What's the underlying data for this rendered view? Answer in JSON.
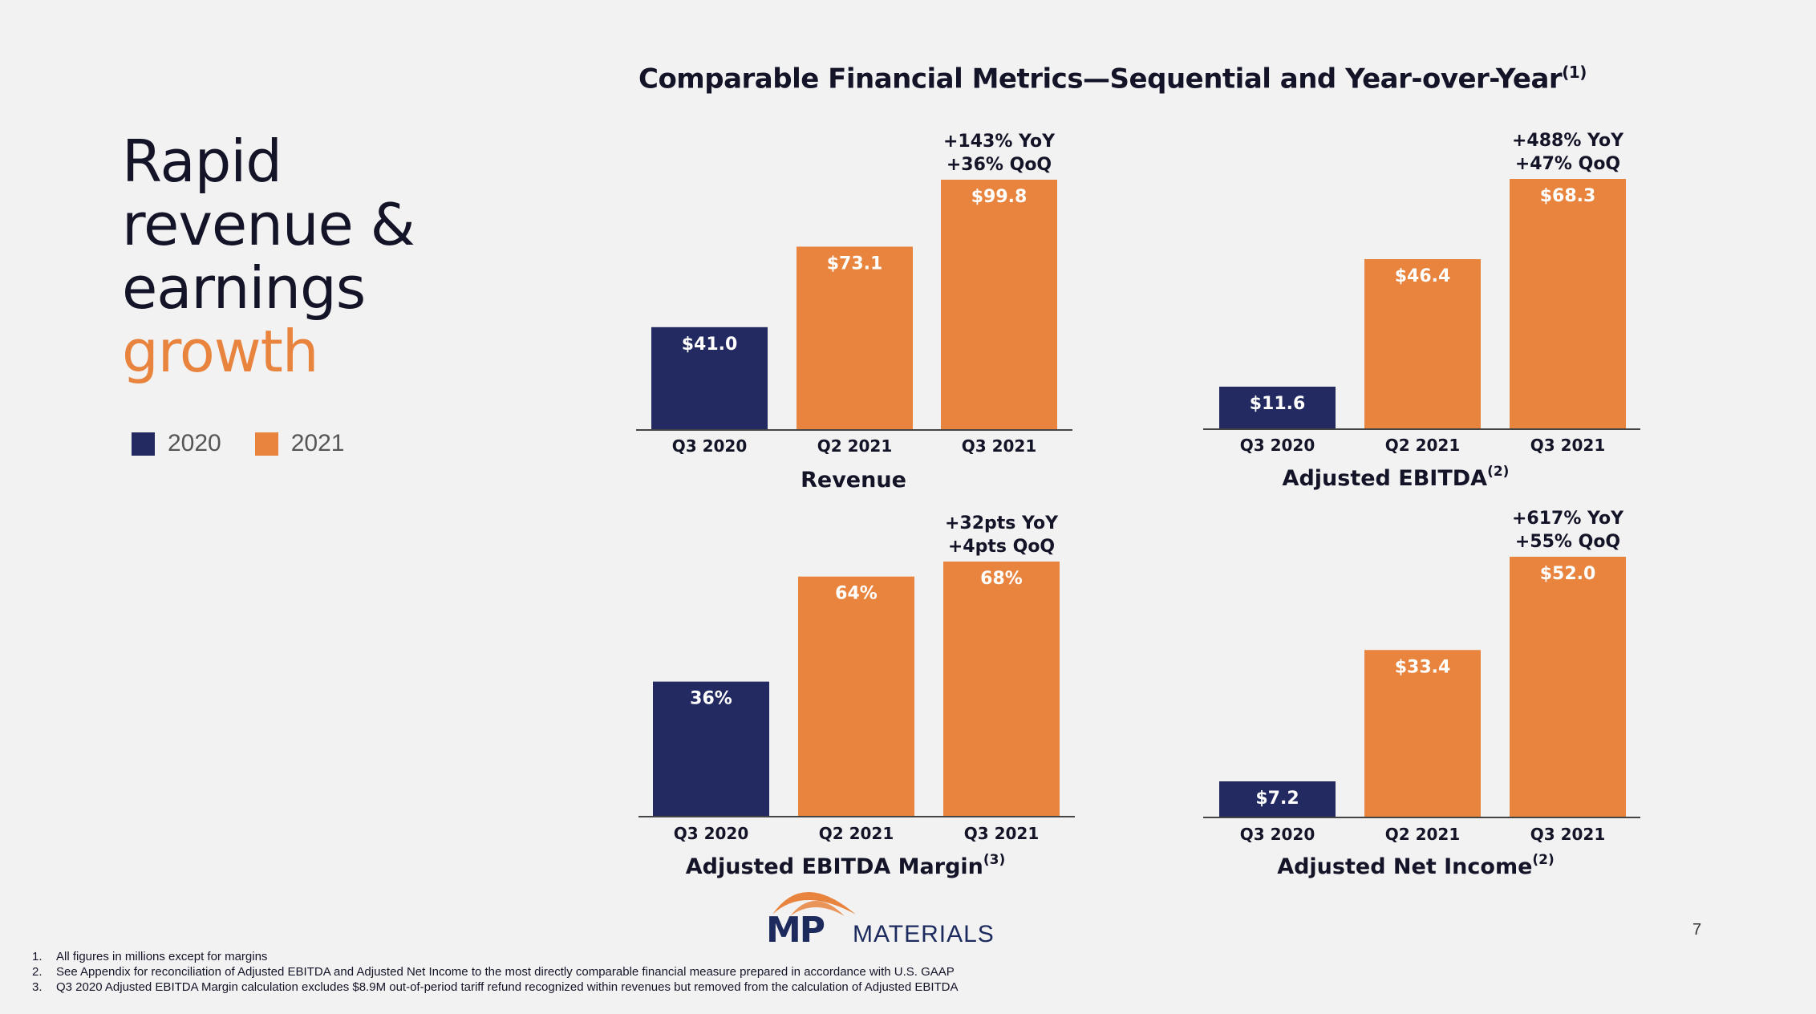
{
  "title": {
    "text": "Comparable Financial Metrics—Sequential and Year-over-Year",
    "sup": "(1)"
  },
  "hero": {
    "line1": "Rapid",
    "line2": "revenue &",
    "line3": "earnings",
    "line4": "growth"
  },
  "legend": [
    {
      "label": "2020",
      "color": "#232a61"
    },
    {
      "label": "2021",
      "color": "#e8843e"
    }
  ],
  "colors": {
    "y2020": "#232a61",
    "y2021": "#e8843e"
  },
  "chart_data": [
    {
      "type": "bar",
      "title": "Revenue",
      "title_sup": "",
      "categories": [
        "Q3 2020",
        "Q2 2021",
        "Q3 2021"
      ],
      "values": [
        41.0,
        73.1,
        99.8
      ],
      "value_labels": [
        "$41.0",
        "$73.1",
        "$99.8"
      ],
      "annotations": [
        "+143% YoY",
        "+36% QoQ"
      ]
    },
    {
      "type": "bar",
      "title": "Adjusted EBITDA",
      "title_sup": "(2)",
      "categories": [
        "Q3 2020",
        "Q2 2021",
        "Q3 2021"
      ],
      "values": [
        11.6,
        46.4,
        68.3
      ],
      "value_labels": [
        "$11.6",
        "$46.4",
        "$68.3"
      ],
      "annotations": [
        "+488% YoY",
        "+47% QoQ"
      ]
    },
    {
      "type": "bar",
      "title": "Adjusted EBITDA Margin",
      "title_sup": "(3)",
      "categories": [
        "Q3 2020",
        "Q2 2021",
        "Q3 2021"
      ],
      "values": [
        36,
        64,
        68
      ],
      "value_labels": [
        "36%",
        "64%",
        "68%"
      ],
      "annotations": [
        "+32pts YoY",
        "+4pts QoQ"
      ]
    },
    {
      "type": "bar",
      "title": "Adjusted Net Income",
      "title_sup": "(2)",
      "categories": [
        "Q3 2020",
        "Q2 2021",
        "Q3 2021"
      ],
      "values": [
        7.2,
        33.4,
        52.0
      ],
      "value_labels": [
        "$7.2",
        "$33.4",
        "$52.0"
      ],
      "annotations": [
        "+617% YoY",
        "+55% QoQ"
      ]
    }
  ],
  "logo": {
    "mp": "MP",
    "materials": "MATERIALS"
  },
  "page_number": "7",
  "footnotes": [
    {
      "num": "1.",
      "text": "All figures in millions except for margins"
    },
    {
      "num": "2.",
      "text": "See Appendix for reconciliation of Adjusted EBITDA and Adjusted Net Income to the most directly comparable financial measure prepared in accordance with U.S. GAAP"
    },
    {
      "num": "3.",
      "text": "Q3 2020 Adjusted EBITDA Margin calculation excludes $8.9M out-of-period tariff refund recognized within revenues but removed from the calculation of Adjusted EBITDA"
    }
  ]
}
